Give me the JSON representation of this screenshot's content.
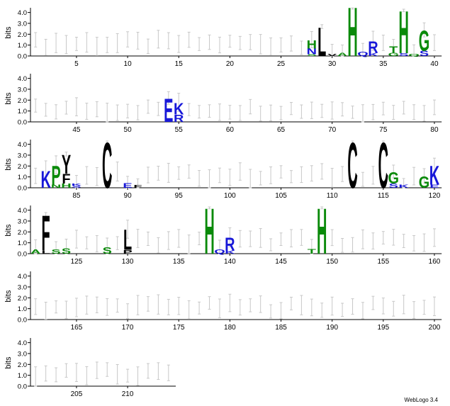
{
  "chart_data": {
    "type": "sequence-logo",
    "ylabel": "bits",
    "yticks": [
      "0.0",
      "1.0",
      "2.0",
      "3.0",
      "4.0"
    ],
    "ylim": [
      0,
      4.3
    ],
    "positions_per_row": 40,
    "total_positions": 214,
    "xtick_every": 5,
    "error_bar_color": "#c8c8c8",
    "colors": {
      "green": "#0a8a0a",
      "blue": "#1818d8",
      "black": "#000000"
    },
    "rows": [
      {
        "start": 1,
        "end": 40,
        "ticks": [
          5,
          10,
          15,
          20,
          25,
          30,
          35,
          40
        ]
      },
      {
        "start": 41,
        "end": 80,
        "ticks": [
          45,
          50,
          55,
          60,
          65,
          70,
          75,
          80
        ]
      },
      {
        "start": 81,
        "end": 120,
        "ticks": [
          85,
          90,
          95,
          100,
          105,
          110,
          115,
          120
        ]
      },
      {
        "start": 121,
        "end": 160,
        "ticks": [
          125,
          130,
          135,
          140,
          145,
          150,
          155,
          160
        ]
      },
      {
        "start": 161,
        "end": 200,
        "ticks": [
          165,
          170,
          175,
          180,
          185,
          190,
          195,
          200
        ]
      },
      {
        "start": 201,
        "end": 214,
        "ticks": [
          205,
          210
        ]
      }
    ],
    "stacks": [
      {
        "pos": 28,
        "letters": [
          {
            "c": "S",
            "h": 0.15,
            "color": "green"
          },
          {
            "c": "N",
            "h": 0.55,
            "color": "blue"
          },
          {
            "c": "H",
            "h": 0.8,
            "color": "green"
          }
        ]
      },
      {
        "pos": 29,
        "letters": [
          {
            "c": "L",
            "h": 2.7,
            "color": "black"
          }
        ]
      },
      {
        "pos": 30,
        "letters": [
          {
            "c": "V",
            "h": 0.2,
            "color": "black"
          }
        ]
      },
      {
        "pos": 31,
        "letters": [
          {
            "c": "A",
            "h": 0.3,
            "color": "green"
          }
        ]
      },
      {
        "pos": 32,
        "letters": [
          {
            "c": "H",
            "h": 4.6,
            "color": "green"
          }
        ]
      },
      {
        "pos": 33,
        "letters": [
          {
            "c": "Q",
            "h": 0.4,
            "color": "blue"
          }
        ]
      },
      {
        "pos": 34,
        "letters": [
          {
            "c": "K",
            "h": 0.3,
            "color": "blue"
          },
          {
            "c": "R",
            "h": 1.1,
            "color": "blue"
          }
        ]
      },
      {
        "pos": 36,
        "letters": [
          {
            "c": "G",
            "h": 0.3,
            "color": "green"
          },
          {
            "c": "T",
            "h": 0.6,
            "color": "green"
          }
        ]
      },
      {
        "pos": 37,
        "letters": [
          {
            "c": "S",
            "h": 0.25,
            "color": "blue"
          },
          {
            "c": "H",
            "h": 4.0,
            "color": "green"
          }
        ]
      },
      {
        "pos": 38,
        "letters": [
          {
            "c": "Q",
            "h": 0.2,
            "color": "green"
          }
        ]
      },
      {
        "pos": 39,
        "letters": [
          {
            "c": "S",
            "h": 0.5,
            "color": "blue"
          },
          {
            "c": "G",
            "h": 1.9,
            "color": "green"
          }
        ]
      },
      {
        "pos": 54,
        "letters": [
          {
            "c": "E",
            "h": 2.2,
            "color": "blue"
          }
        ]
      },
      {
        "pos": 55,
        "letters": [
          {
            "c": "R",
            "h": 0.7,
            "color": "blue"
          },
          {
            "c": "K",
            "h": 1.1,
            "color": "blue"
          }
        ]
      },
      {
        "pos": 82,
        "letters": [
          {
            "c": "K",
            "h": 1.6,
            "color": "blue"
          }
        ]
      },
      {
        "pos": 83,
        "letters": [
          {
            "c": "N",
            "h": 0.3,
            "color": "green"
          },
          {
            "c": "P",
            "h": 1.8,
            "color": "green"
          }
        ]
      },
      {
        "pos": 84,
        "letters": [
          {
            "c": "H",
            "h": 0.4,
            "color": "green"
          },
          {
            "c": "F",
            "h": 0.9,
            "color": "black"
          },
          {
            "c": "Y",
            "h": 1.8,
            "color": "black"
          }
        ]
      },
      {
        "pos": 85,
        "letters": [
          {
            "c": "S",
            "h": 0.2,
            "color": "blue"
          },
          {
            "c": "K",
            "h": 0.2,
            "color": "blue"
          }
        ]
      },
      {
        "pos": 88,
        "letters": [
          {
            "c": "C",
            "h": 4.3,
            "color": "black"
          }
        ]
      },
      {
        "pos": 90,
        "letters": [
          {
            "c": "E",
            "h": 0.45,
            "color": "blue"
          }
        ]
      },
      {
        "pos": 91,
        "letters": [
          {
            "c": "F",
            "h": 0.25,
            "color": "black"
          }
        ]
      },
      {
        "pos": 112,
        "letters": [
          {
            "c": "C",
            "h": 4.3,
            "color": "black"
          }
        ]
      },
      {
        "pos": 115,
        "letters": [
          {
            "c": "C",
            "h": 4.3,
            "color": "black"
          }
        ]
      },
      {
        "pos": 116,
        "letters": [
          {
            "c": "S",
            "h": 0.4,
            "color": "blue"
          },
          {
            "c": "G",
            "h": 1.1,
            "color": "green"
          }
        ]
      },
      {
        "pos": 117,
        "letters": [
          {
            "c": "K",
            "h": 0.3,
            "color": "blue"
          }
        ]
      },
      {
        "pos": 119,
        "letters": [
          {
            "c": "G",
            "h": 1.1,
            "color": "green"
          }
        ]
      },
      {
        "pos": 120,
        "letters": [
          {
            "c": "E",
            "h": 0.3,
            "color": "blue"
          },
          {
            "c": "K",
            "h": 1.8,
            "color": "blue"
          }
        ]
      },
      {
        "pos": 121,
        "letters": [
          {
            "c": "A",
            "h": 0.4,
            "color": "green"
          }
        ]
      },
      {
        "pos": 122,
        "letters": [
          {
            "c": "L",
            "h": 0.3,
            "color": "black"
          },
          {
            "c": "F",
            "h": 3.3,
            "color": "black"
          }
        ]
      },
      {
        "pos": 123,
        "letters": [
          {
            "c": "S",
            "h": 0.4,
            "color": "green"
          }
        ]
      },
      {
        "pos": 124,
        "letters": [
          {
            "c": "S",
            "h": 0.5,
            "color": "green"
          }
        ]
      },
      {
        "pos": 128,
        "letters": [
          {
            "c": "S",
            "h": 0.6,
            "color": "green"
          }
        ]
      },
      {
        "pos": 130,
        "letters": [
          {
            "c": "P",
            "h": 0.35,
            "color": "black"
          },
          {
            "c": "L",
            "h": 1.9,
            "color": "black"
          }
        ]
      },
      {
        "pos": 138,
        "letters": [
          {
            "c": "H",
            "h": 4.3,
            "color": "green"
          }
        ]
      },
      {
        "pos": 139,
        "letters": [
          {
            "c": "Q",
            "h": 0.4,
            "color": "blue"
          }
        ]
      },
      {
        "pos": 140,
        "letters": [
          {
            "c": "K",
            "h": 0.3,
            "color": "blue"
          },
          {
            "c": "R",
            "h": 1.2,
            "color": "blue"
          }
        ]
      },
      {
        "pos": 148,
        "letters": [
          {
            "c": "T",
            "h": 0.45,
            "color": "green"
          }
        ]
      },
      {
        "pos": 149,
        "letters": [
          {
            "c": "H",
            "h": 4.3,
            "color": "green"
          }
        ]
      }
    ]
  },
  "footer": {
    "text": "WebLogo 3.4"
  }
}
